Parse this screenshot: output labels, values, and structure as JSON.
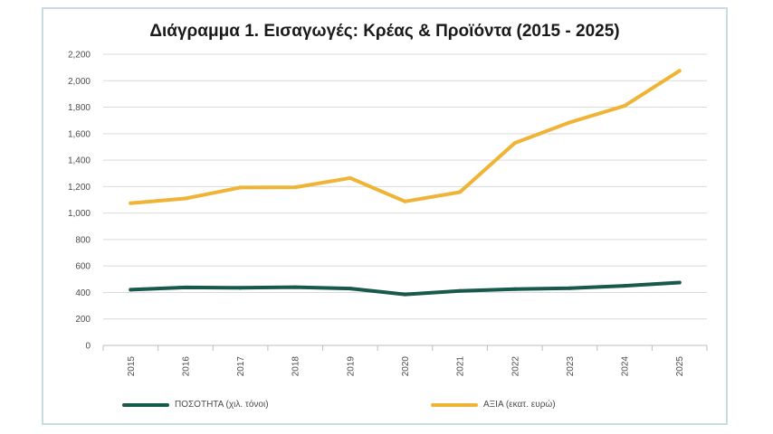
{
  "chart_data": {
    "type": "line",
    "title": "Διάγραμμα 1. Εισαγωγές: Κρέας & Προϊόντα (2015 - 2025)",
    "xlabel": "",
    "ylabel": "",
    "categories": [
      "2015",
      "2016",
      "2017",
      "2018",
      "2019",
      "2020",
      "2021",
      "2022",
      "2023",
      "2024",
      "2025"
    ],
    "ylim": [
      0,
      2200
    ],
    "yticks": [
      0,
      200,
      400,
      600,
      800,
      1000,
      1200,
      1400,
      1600,
      1800,
      2000,
      2200
    ],
    "ytick_labels": [
      "0",
      "200",
      "400",
      "600",
      "800",
      "1,000",
      "1,200",
      "1,400",
      "1,600",
      "1,800",
      "2,000",
      "2,200"
    ],
    "grid": true,
    "legend_position": "bottom",
    "series": [
      {
        "name": "ΠΟΣΟΤΗΤΑ (χιλ. τόνοι)",
        "color": "#17594a",
        "values": [
          421,
          438,
          435,
          440,
          430,
          385,
          412,
          425,
          432,
          450,
          475
        ]
      },
      {
        "name": "ΑΞΙΑ (εκατ. ευρώ)",
        "color": "#efb435",
        "values": [
          1075,
          1110,
          1193,
          1195,
          1265,
          1088,
          1158,
          1530,
          1685,
          1810,
          2075
        ]
      }
    ]
  }
}
